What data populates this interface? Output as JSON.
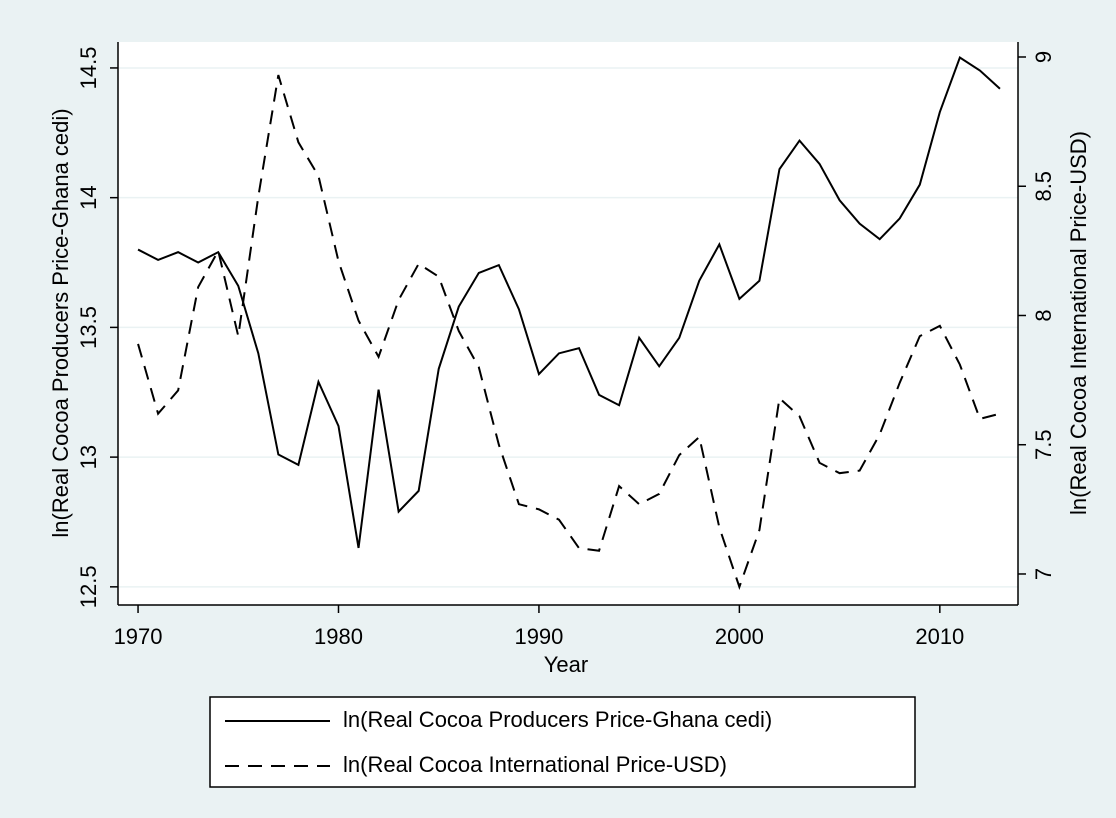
{
  "chart_data": {
    "type": "line",
    "xlabel": "Year",
    "ylabel": "ln(Real Cocoa Producers Price-Ghana cedi)",
    "y2label": "ln(Real Cocoa International Price-USD)",
    "x": [
      1970,
      1971,
      1972,
      1973,
      1974,
      1975,
      1976,
      1977,
      1978,
      1979,
      1980,
      1981,
      1982,
      1983,
      1984,
      1985,
      1986,
      1987,
      1988,
      1989,
      1990,
      1991,
      1992,
      1993,
      1994,
      1995,
      1996,
      1997,
      1998,
      1999,
      2000,
      2001,
      2002,
      2003,
      2004,
      2005,
      2006,
      2007,
      2008,
      2009,
      2010,
      2011,
      2012,
      2013
    ],
    "xlim": [
      1969,
      2013.9
    ],
    "xticks": [
      1970,
      1980,
      1990,
      2000,
      2010
    ],
    "ylim": [
      12.43,
      14.6
    ],
    "yticks": [
      12.5,
      13,
      13.5,
      14,
      14.5
    ],
    "y2lim": [
      6.88,
      9.058
    ],
    "y2ticks": [
      7,
      7.5,
      8,
      8.5,
      9
    ],
    "grid": true,
    "series": [
      {
        "name": "ln(Real Cocoa Producers Price-Ghana cedi)",
        "color": "#000000",
        "dash": "solid",
        "axis": "y",
        "values": [
          13.8,
          13.76,
          13.79,
          13.75,
          13.79,
          13.66,
          13.4,
          13.01,
          12.97,
          13.29,
          13.12,
          12.65,
          13.26,
          12.79,
          12.87,
          13.34,
          13.58,
          13.71,
          13.74,
          13.57,
          13.32,
          13.4,
          13.42,
          13.24,
          13.2,
          13.46,
          13.35,
          13.46,
          13.68,
          13.82,
          13.61,
          13.68,
          14.11,
          14.22,
          14.13,
          13.99,
          13.9,
          13.84,
          13.92,
          14.05,
          14.33,
          14.54,
          14.49,
          14.42
        ]
      },
      {
        "name": "ln(Real Cocoa International Price-USD)",
        "color": "#000000",
        "dash": "dashed",
        "axis": "y2",
        "values": [
          7.89,
          7.62,
          7.71,
          8.11,
          8.25,
          7.92,
          8.46,
          8.93,
          8.67,
          8.54,
          8.21,
          7.98,
          7.84,
          8.06,
          8.2,
          8.15,
          7.94,
          7.8,
          7.5,
          7.27,
          7.25,
          7.21,
          7.1,
          7.09,
          7.34,
          7.27,
          7.31,
          7.46,
          7.53,
          7.18,
          6.95,
          7.17,
          7.68,
          7.61,
          7.43,
          7.39,
          7.4,
          7.54,
          7.74,
          7.92,
          7.96,
          7.81,
          7.6,
          7.62
        ]
      }
    ]
  }
}
